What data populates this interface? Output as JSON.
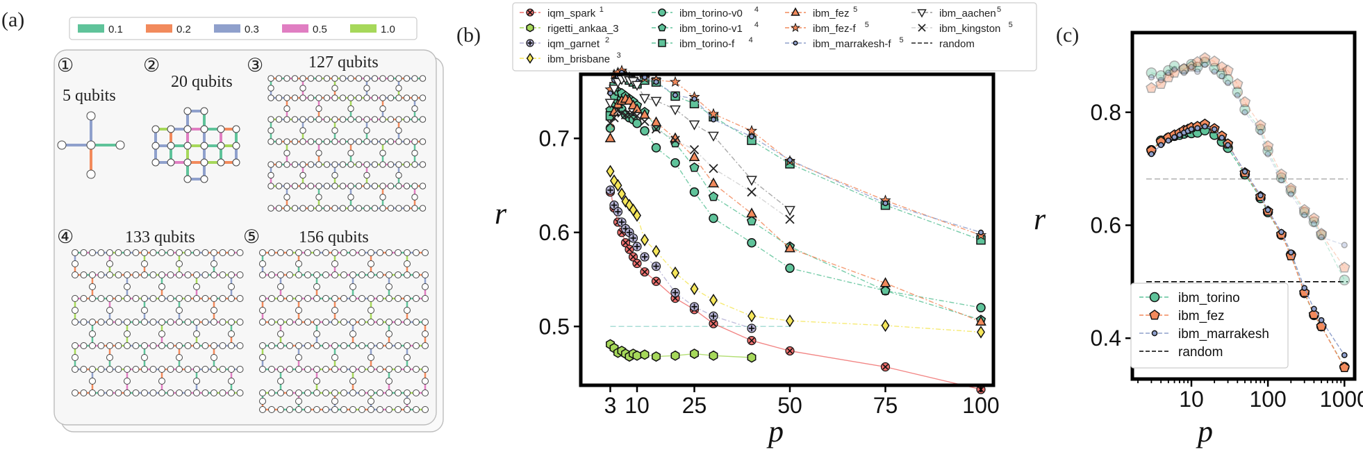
{
  "figure": {
    "panel_labels": [
      "(a)",
      "(b)",
      "(c)"
    ]
  },
  "panel_a": {
    "legend": [
      {
        "label": "0.1",
        "color": "#5fc39a"
      },
      {
        "label": "0.2",
        "color": "#f28a5c"
      },
      {
        "label": "0.3",
        "color": "#8fa0cc"
      },
      {
        "label": "0.5",
        "color": "#e07ec2"
      },
      {
        "label": "1.0",
        "color": "#a6d85a"
      }
    ],
    "graphs": [
      {
        "num": "①",
        "title": "5 qubits"
      },
      {
        "num": "②",
        "title": "20 qubits"
      },
      {
        "num": "③",
        "title": "127 qubits"
      },
      {
        "num": "④",
        "title": "133 qubits"
      },
      {
        "num": "⑤",
        "title": "156 qubits"
      }
    ]
  },
  "chart_data": [
    {
      "panel": "(b)",
      "type": "line",
      "xlabel": "p",
      "ylabel": "r",
      "xlim": [
        0,
        100
      ],
      "ylim": [
        0.45,
        0.78
      ],
      "x_ticks": [
        3,
        10,
        25,
        50,
        75,
        100
      ],
      "y_ticks": [
        0.5,
        0.6,
        0.7
      ],
      "series": [
        {
          "name": "iqm_spark",
          "sup": "1",
          "color": "#f0706e",
          "marker": "xcircle",
          "x": [
            3,
            4,
            5,
            6,
            7,
            8,
            9,
            10,
            12,
            15,
            20,
            25,
            30,
            40,
            50,
            75,
            100
          ],
          "y": [
            0.643,
            0.626,
            0.611,
            0.6,
            0.589,
            0.582,
            0.574,
            0.567,
            0.558,
            0.548,
            0.53,
            0.518,
            0.503,
            0.485,
            0.474,
            0.457,
            0.433
          ]
        },
        {
          "name": "rigetti_ankaa_3",
          "sup": "",
          "color": "#a6d85a",
          "marker": "hex",
          "x": [
            3,
            4,
            5,
            6,
            7,
            8,
            9,
            10,
            12,
            15,
            20,
            25,
            30,
            40
          ],
          "y": [
            0.481,
            0.477,
            0.472,
            0.474,
            0.471,
            0.468,
            0.471,
            0.469,
            0.47,
            0.468,
            0.469,
            0.471,
            0.469,
            0.467
          ]
        },
        {
          "name": "iqm_garnet",
          "sup": "2",
          "color": "#b6b3d6",
          "marker": "plus",
          "x": [
            3,
            4,
            5,
            6,
            7,
            8,
            9,
            10,
            12,
            15,
            20,
            25,
            30,
            40
          ],
          "y": [
            0.645,
            0.629,
            0.622,
            0.611,
            0.604,
            0.6,
            0.594,
            0.585,
            0.574,
            0.564,
            0.536,
            0.521,
            0.511,
            0.498
          ]
        },
        {
          "name": "ibm_brisbane",
          "sup": "3",
          "color": "#f5e65a",
          "marker": "diamond",
          "x": [
            3,
            4,
            5,
            6,
            7,
            8,
            9,
            10,
            12,
            15,
            20,
            25,
            30,
            40,
            50,
            75,
            100
          ],
          "y": [
            0.665,
            0.655,
            0.65,
            0.641,
            0.633,
            0.629,
            0.624,
            0.618,
            0.592,
            0.58,
            0.557,
            0.54,
            0.528,
            0.511,
            0.506,
            0.501,
            0.494
          ]
        },
        {
          "name": "ibm_torino-v0",
          "sup": "4",
          "color": "#5fc39a",
          "marker": "circle",
          "x": [
            3,
            4,
            5,
            6,
            7,
            8,
            9,
            10,
            12,
            15,
            20,
            25,
            30,
            40,
            50,
            75,
            100
          ],
          "y": [
            0.711,
            0.738,
            0.74,
            0.731,
            0.725,
            0.722,
            0.72,
            0.716,
            0.708,
            0.69,
            0.674,
            0.643,
            0.615,
            0.589,
            0.562,
            0.538,
            0.52
          ]
        },
        {
          "name": "ibm_torino-v1",
          "sup": "4",
          "color": "#5fc39a",
          "marker": "pentagon",
          "x": [
            3,
            4,
            5,
            6,
            7,
            8,
            9,
            10,
            12,
            15,
            20,
            25,
            30,
            40,
            50,
            75,
            100
          ],
          "y": [
            0.73,
            0.745,
            0.75,
            0.748,
            0.745,
            0.742,
            0.739,
            0.735,
            0.728,
            0.712,
            0.695,
            0.669,
            0.638,
            0.612,
            0.585,
            0.538,
            0.507
          ]
        },
        {
          "name": "ibm_torino-f",
          "sup": "4",
          "color": "#5fc39a",
          "marker": "square",
          "x": [
            3,
            4,
            5,
            6,
            7,
            8,
            9,
            10,
            12,
            15,
            20,
            25,
            30,
            40,
            50,
            75,
            100
          ],
          "y": [
            0.724,
            0.755,
            0.763,
            0.766,
            0.765,
            0.762,
            0.76,
            0.758,
            0.762,
            0.76,
            0.745,
            0.737,
            0.723,
            0.698,
            0.673,
            0.629,
            0.592
          ]
        },
        {
          "name": "ibm_fez",
          "sup": "5",
          "color": "#f28a5c",
          "marker": "triangle",
          "x": [
            3,
            4,
            5,
            6,
            7,
            8,
            9,
            10,
            12,
            15,
            20,
            25,
            30,
            40,
            50,
            75,
            100
          ],
          "y": [
            0.7,
            0.728,
            0.736,
            0.74,
            0.742,
            0.74,
            0.735,
            0.731,
            0.725,
            0.717,
            0.7,
            0.68,
            0.652,
            0.62,
            0.583,
            0.546,
            0.505
          ]
        },
        {
          "name": "ibm_fez-f",
          "sup": "5",
          "color": "#f28a5c",
          "marker": "star",
          "x": [
            3,
            4,
            5,
            6,
            7,
            8,
            9,
            10,
            12,
            15,
            20,
            25,
            30,
            40,
            50,
            75,
            100
          ],
          "y": [
            0.752,
            0.768,
            0.77,
            0.772,
            0.768,
            0.765,
            0.762,
            0.76,
            0.764,
            0.762,
            0.76,
            0.744,
            0.726,
            0.708,
            0.676,
            0.634,
            0.597
          ]
        },
        {
          "name": "ibm_marrakesh-f",
          "sup": "5",
          "color": "#8fa0cc",
          "marker": "dot",
          "x": [
            3,
            4,
            5,
            6,
            7,
            8,
            9,
            10,
            12,
            15,
            20,
            25,
            30,
            40,
            50,
            75,
            100
          ],
          "y": [
            0.748,
            0.762,
            0.766,
            0.77,
            0.768,
            0.766,
            0.764,
            0.761,
            0.765,
            0.76,
            0.746,
            0.742,
            0.72,
            0.702,
            0.677,
            0.631,
            0.6
          ]
        },
        {
          "name": "ibm_aachen",
          "sup": "5",
          "color": "#9a9a9a",
          "marker": "tridown",
          "x": [
            3,
            4,
            5,
            6,
            7,
            8,
            9,
            10,
            12,
            15,
            20,
            25,
            30,
            40,
            50
          ],
          "y": [
            0.738,
            0.753,
            0.76,
            0.763,
            0.764,
            0.762,
            0.761,
            0.757,
            0.743,
            0.74,
            0.731,
            0.715,
            0.703,
            0.656,
            0.624
          ]
        },
        {
          "name": "ibm_kingston",
          "sup": "5",
          "color": "#cfcfcf",
          "marker": "x",
          "x": [
            3,
            4,
            5,
            6,
            7,
            8,
            9,
            10,
            12,
            15,
            20,
            25,
            30,
            40,
            50
          ],
          "y": [
            0.716,
            0.722,
            0.73,
            0.727,
            0.725,
            0.725,
            0.726,
            0.724,
            0.718,
            0.71,
            0.698,
            0.688,
            0.668,
            0.643,
            0.614
          ]
        }
      ],
      "random": {
        "name": "random",
        "y": 0.5,
        "x_range": [
          3,
          50
        ]
      }
    },
    {
      "panel": "(c)",
      "type": "line",
      "xscale": "log",
      "xlabel": "p",
      "ylabel": "r",
      "xlim": [
        2,
        1200
      ],
      "ylim": [
        0.34,
        0.93
      ],
      "x_ticks": [
        10,
        100,
        1000
      ],
      "x_tick_labels": [
        "10",
        "100",
        "1000"
      ],
      "y_ticks": [
        0.4,
        0.6,
        0.8
      ],
      "legend": [
        "ibm_torino",
        "ibm_fez",
        "ibm_marrakesh",
        "random"
      ],
      "series": [
        {
          "name": "ibm_torino",
          "color": "#5fc39a",
          "marker": "circle",
          "x": [
            3,
            4,
            5,
            6,
            7,
            8,
            9,
            10,
            12,
            15,
            20,
            25,
            30,
            50,
            80,
            100,
            150,
            200,
            300,
            400,
            500,
            1000
          ],
          "y": [
            0.733,
            0.75,
            0.755,
            0.758,
            0.76,
            0.762,
            0.765,
            0.763,
            0.764,
            0.768,
            0.76,
            0.748,
            0.737,
            0.69,
            0.648,
            0.623,
            0.583,
            0.548,
            0.48,
            0.441,
            0.421,
            0.349
          ]
        },
        {
          "name": "ibm_fez",
          "color": "#f28a5c",
          "marker": "pentagon",
          "x": [
            3,
            4,
            5,
            6,
            7,
            8,
            9,
            10,
            12,
            15,
            20,
            25,
            30,
            50,
            80,
            100,
            150,
            200,
            300,
            400,
            500,
            1000
          ],
          "y": [
            0.732,
            0.748,
            0.755,
            0.76,
            0.763,
            0.768,
            0.77,
            0.773,
            0.775,
            0.779,
            0.771,
            0.758,
            0.744,
            0.693,
            0.651,
            0.625,
            0.584,
            0.546,
            0.481,
            0.442,
            0.421,
            0.348
          ]
        },
        {
          "name": "ibm_marrakesh",
          "color": "#8fa0cc",
          "marker": "dot",
          "x": [
            3,
            4,
            5,
            6,
            7,
            8,
            9,
            10,
            12,
            15,
            20,
            25,
            30,
            50,
            80,
            100,
            150,
            200,
            300,
            400,
            500,
            1000
          ],
          "y": [
            0.726,
            0.742,
            0.75,
            0.756,
            0.76,
            0.764,
            0.767,
            0.77,
            0.772,
            0.775,
            0.77,
            0.755,
            0.742,
            0.695,
            0.653,
            0.627,
            0.588,
            0.552,
            0.489,
            0.452,
            0.432,
            0.37
          ]
        },
        {
          "name": "ibm_torino (faint)",
          "color": "#5fc39a",
          "marker": "circle",
          "faint": true,
          "x": [
            3,
            4,
            5,
            6,
            8,
            10,
            12,
            15,
            20,
            25,
            30,
            40,
            50,
            80,
            100,
            150,
            200,
            300,
            400,
            500,
            1000
          ],
          "y": [
            0.87,
            0.865,
            0.874,
            0.882,
            0.876,
            0.885,
            0.88,
            0.889,
            0.878,
            0.868,
            0.858,
            0.836,
            0.805,
            0.77,
            0.732,
            0.684,
            0.661,
            0.623,
            0.606,
            0.583,
            0.503
          ]
        },
        {
          "name": "ibm_fez (faint)",
          "color": "#f28a5c",
          "marker": "pentagon",
          "faint": true,
          "x": [
            3,
            4,
            5,
            6,
            8,
            10,
            12,
            15,
            20,
            25,
            30,
            40,
            50,
            80,
            100,
            150,
            200,
            300,
            400,
            500,
            1000
          ],
          "y": [
            0.843,
            0.85,
            0.862,
            0.87,
            0.877,
            0.881,
            0.889,
            0.896,
            0.89,
            0.88,
            0.874,
            0.85,
            0.818,
            0.777,
            0.74,
            0.69,
            0.665,
            0.627,
            0.612,
            0.585,
            0.525
          ]
        },
        {
          "name": "ibm_marrakesh (faint)",
          "color": "#8fa0cc",
          "marker": "dot",
          "faint": true,
          "x": [
            3,
            4,
            5,
            6,
            8,
            10,
            12,
            15,
            20,
            25,
            30,
            40,
            50,
            80,
            100,
            150,
            200,
            300,
            400,
            500,
            1000
          ],
          "y": [
            0.862,
            0.857,
            0.87,
            0.876,
            0.87,
            0.88,
            0.872,
            0.884,
            0.872,
            0.864,
            0.852,
            0.83,
            0.8,
            0.765,
            0.726,
            0.68,
            0.655,
            0.618,
            0.603,
            0.579,
            0.565
          ]
        }
      ],
      "random": {
        "name": "random",
        "y": 0.5
      },
      "random_faint": {
        "y": 0.682
      }
    }
  ]
}
